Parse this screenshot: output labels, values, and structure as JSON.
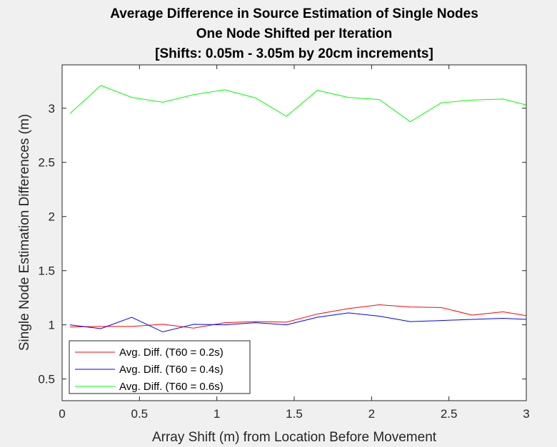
{
  "chart_data": {
    "type": "line",
    "title": [
      "Average Difference in Source Estimation of Single Nodes",
      "One Node Shifted per Iteration",
      "[Shifts: 0.05m - 3.05m by 20cm increments]"
    ],
    "xlabel": "Array Shift (m) from Location Before Movement",
    "ylabel": "Single Node Estimation Differences (m)",
    "xlim": [
      0,
      3
    ],
    "ylim": [
      0.3,
      3.4
    ],
    "xticks": [
      0,
      0.5,
      1,
      1.5,
      2,
      2.5,
      3
    ],
    "xtick_labels": [
      "0",
      "0.5",
      "1",
      "1.5",
      "2",
      "2.5",
      "3"
    ],
    "yticks": [
      0.5,
      1,
      1.5,
      2,
      2.5,
      3
    ],
    "ytick_labels": [
      "0.5",
      "1",
      "1.5",
      "2",
      "2.5",
      "3"
    ],
    "grid": false,
    "legend_position": "bottom-left",
    "x": [
      0.05,
      0.25,
      0.45,
      0.65,
      0.85,
      1.05,
      1.25,
      1.45,
      1.65,
      1.85,
      2.05,
      2.25,
      2.45,
      2.65,
      2.85,
      3.05
    ],
    "series": [
      {
        "name": "Avg. Diff. (T60 = 0.2s)",
        "color": "#ff0000",
        "values": [
          0.98,
          0.985,
          0.985,
          1.005,
          0.97,
          1.02,
          1.03,
          1.025,
          1.1,
          1.15,
          1.185,
          1.165,
          1.16,
          1.09,
          1.12,
          1.085
        ]
      },
      {
        "name": "Avg. Diff. (T60 = 0.4s)",
        "color": "#0000ff",
        "values": [
          1.0,
          0.965,
          1.07,
          0.935,
          1.005,
          1.0,
          1.02,
          1.0,
          1.07,
          1.11,
          1.08,
          1.03,
          1.04,
          1.05,
          1.06,
          1.05
        ]
      },
      {
        "name": "Avg. Diff. (T60 = 0.6s)",
        "color": "#00ff00",
        "values": [
          2.95,
          3.21,
          3.1,
          3.055,
          3.125,
          3.17,
          3.095,
          2.925,
          3.165,
          3.1,
          3.08,
          2.875,
          3.05,
          3.075,
          3.085,
          3.03
        ]
      }
    ]
  }
}
